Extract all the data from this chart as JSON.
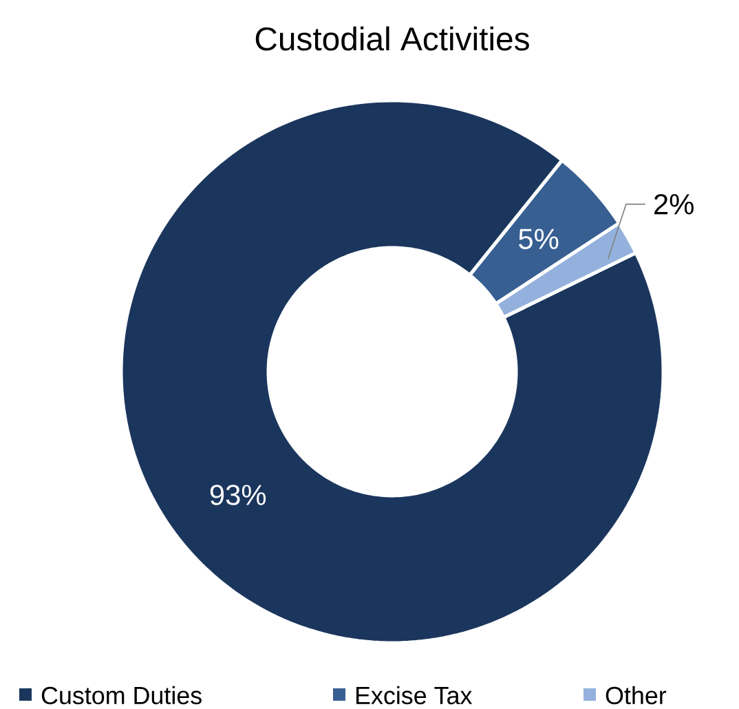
{
  "chart_data": {
    "type": "donut",
    "title": "Custodial Activities",
    "categories": [
      "Custom Duties",
      "Excise Tax",
      "Other"
    ],
    "values": [
      93,
      5,
      2
    ],
    "colors": [
      "#1b365d",
      "#375f92",
      "#93b1dc"
    ],
    "value_labels": [
      "93%",
      "5%",
      "2%"
    ],
    "legend": "bottom"
  }
}
